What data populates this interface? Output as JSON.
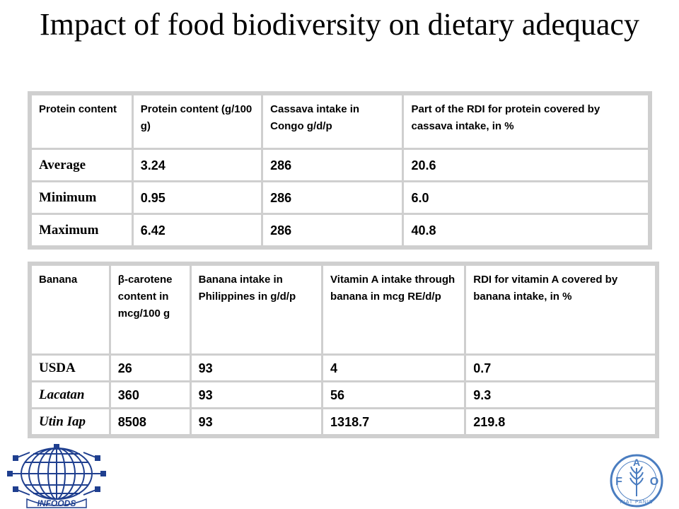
{
  "title": "Impact of food biodiversity on dietary adequacy",
  "table1": {
    "headers": [
      "Protein content",
      "Protein content (g/100 g)",
      "Cassava intake in Congo g/d/p",
      "Part of the RDI for protein covered by cassava intake, in %"
    ],
    "rows": [
      [
        "Average",
        "3.24",
        "286",
        "20.6"
      ],
      [
        "Minimum",
        "0.95",
        "286",
        "6.0"
      ],
      [
        "Maximum",
        "6.42",
        "286",
        "40.8"
      ]
    ]
  },
  "table2": {
    "headers": [
      "Banana",
      "β-carotene content in mcg/100 g",
      "Banana intake in Philippines in g/d/p",
      "Vitamin A intake through banana in mcg RE/d/p",
      "RDI for vitamin A covered by banana intake, in %"
    ],
    "rows": [
      [
        "USDA",
        "26",
        "93",
        "4",
        "0.7"
      ],
      [
        "Lacatan",
        "360",
        "93",
        "56",
        "9.3"
      ],
      [
        "Utin Iap",
        "8508",
        "93",
        "1318.7",
        "219.8"
      ]
    ]
  },
  "logos": {
    "infoods_text": "INFOODS",
    "fao_letters": [
      "F",
      "A",
      "O"
    ],
    "fao_motto": "FIAT PANIS",
    "infoods_color": "#1f3f8f",
    "fao_color": "#4a7dc0"
  }
}
